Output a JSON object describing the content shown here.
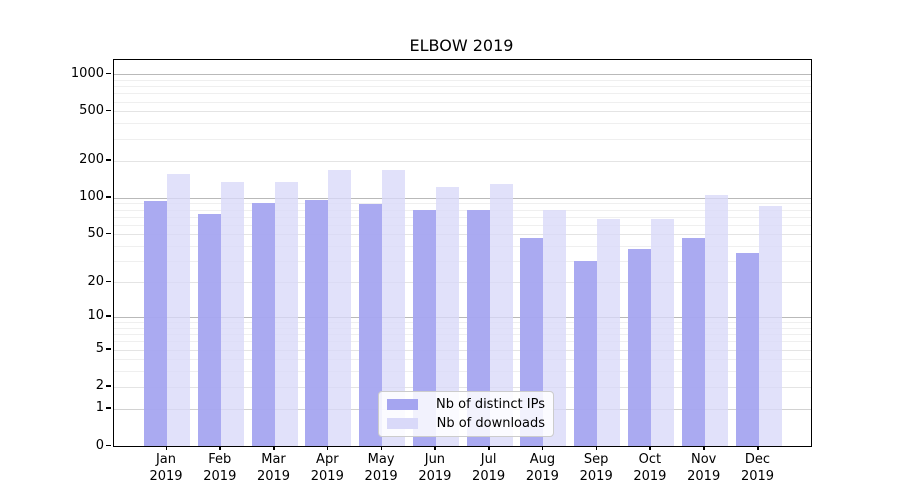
{
  "chart_data": {
    "type": "bar",
    "title": "ELBOW 2019",
    "categories": [
      "Jan 2019",
      "Feb 2019",
      "Mar 2019",
      "Apr 2019",
      "May 2019",
      "Jun 2019",
      "Jul 2019",
      "Aug 2019",
      "Sep 2019",
      "Oct 2019",
      "Nov 2019",
      "Dec 2019"
    ],
    "months": [
      "Jan",
      "Feb",
      "Mar",
      "Apr",
      "May",
      "Jun",
      "Jul",
      "Aug",
      "Sep",
      "Oct",
      "Nov",
      "Dec"
    ],
    "year": "2019",
    "series": [
      {
        "name": "Nb of distinct IPs",
        "color": "#a5a5f0",
        "values": [
          93,
          73,
          91,
          95,
          89,
          79,
          79,
          47,
          30,
          38,
          47,
          35
        ]
      },
      {
        "name": "Nb of downloads",
        "color": "#d9d9f9",
        "values": [
          155,
          133,
          135,
          168,
          169,
          122,
          129,
          79,
          67,
          67,
          105,
          86
        ]
      }
    ],
    "yscale": "log1p",
    "y_ticks": [
      0,
      1,
      2,
      5,
      10,
      20,
      50,
      100,
      200,
      500,
      1000
    ],
    "y_minor_ticks": [
      3,
      4,
      6,
      7,
      8,
      9,
      30,
      40,
      60,
      70,
      80,
      90,
      300,
      400,
      600,
      700,
      800,
      900
    ],
    "ylim": [
      0,
      1300
    ],
    "xlabel": "",
    "ylabel": "",
    "grid": true,
    "legend_position": "lower center"
  }
}
